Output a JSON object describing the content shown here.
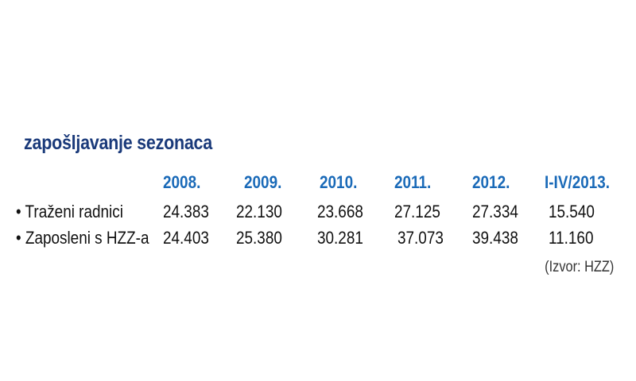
{
  "chart_data": {
    "type": "table",
    "title": "zapošljavanje sezonaca",
    "columns": [
      "2008.",
      "2009.",
      "2010.",
      "2011.",
      "2012.",
      "I-IV/2013."
    ],
    "rows": [
      {
        "label": "• Traženi radnici",
        "values": [
          "24.383",
          "22.130",
          "23.668",
          "27.125",
          "27.334",
          "15.540"
        ]
      },
      {
        "label": "• Zaposleni s HZZ-a",
        "values": [
          "24.403",
          "25.380",
          "30.281",
          "37.073",
          "39.438",
          "11.160"
        ]
      }
    ],
    "source": "(Izvor: HZZ)"
  },
  "colors": {
    "title": "#1a3a7a",
    "header": "#1a6ab8",
    "text": "#111111"
  }
}
